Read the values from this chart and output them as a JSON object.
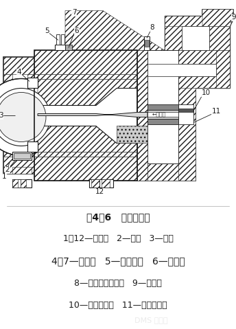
{
  "title": "图4－6   旁侧式机头",
  "lines": [
    "1，12—测温孔   2—口模   3—芯模",
    "4，7—电热圈   5—调节螺钉   6—机头体",
    "8—熔融塑料测温孔   9—连接器",
    "10—高温计测孔   11—芯模加热器"
  ],
  "bg_color": "#ffffff",
  "lc": "#1a1a1a",
  "hatch_color": "#444444",
  "title_fontsize": 10,
  "label_fontsize": 9,
  "fig_width": 3.44,
  "fig_height": 4.79,
  "dpi": 100
}
